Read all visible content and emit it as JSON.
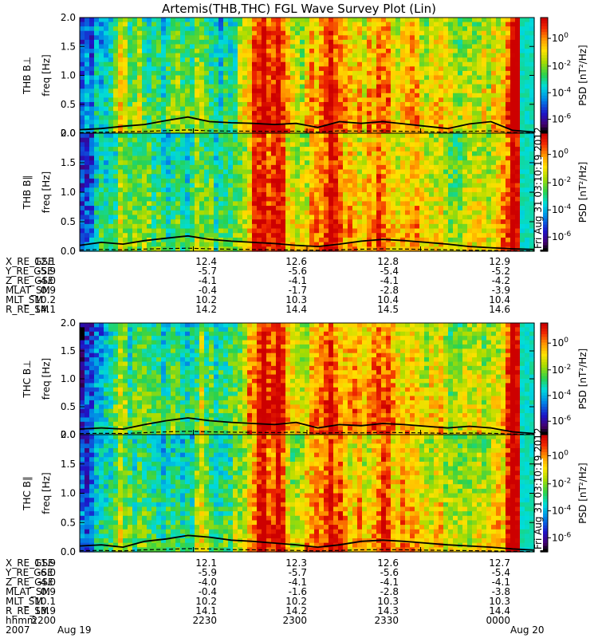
{
  "chart_data": {
    "type": "heatmap",
    "title": "Artemis(THB,THC) FGL Wave Survey Plot (Lin)",
    "colorbar": {
      "label": "PSD [nT²/Hz]",
      "ticks": [
        "10^0",
        "10^-2",
        "10^-4",
        "10^-6"
      ],
      "scale": "log",
      "colormap": "rainbow (black-purple-blue-cyan-green-yellow-orange-red)"
    },
    "y_axis": {
      "label": "freq [Hz]",
      "ylim": [
        0.0,
        2.0
      ],
      "ticks": [
        "0.0",
        "0.5",
        "1.0",
        "1.5",
        "2.0"
      ]
    },
    "panels": [
      {
        "probe": "THB",
        "component": "B⊥",
        "curve": [
          0.06,
          0.08,
          0.12,
          0.15,
          0.22,
          0.28,
          0.2,
          0.18,
          0.17,
          0.15,
          0.17,
          0.1,
          0.2,
          0.17,
          0.2,
          0.16,
          0.12,
          0.08,
          0.16,
          0.2,
          0.05,
          0.02
        ]
      },
      {
        "probe": "THB",
        "component": "B∥",
        "curve": [
          0.1,
          0.15,
          0.12,
          0.18,
          0.22,
          0.26,
          0.2,
          0.17,
          0.15,
          0.13,
          0.1,
          0.08,
          0.12,
          0.17,
          0.2,
          0.18,
          0.15,
          0.12,
          0.08,
          0.06,
          0.04,
          0.03
        ]
      },
      {
        "probe": "THC",
        "component": "B⊥",
        "curve": [
          0.1,
          0.12,
          0.1,
          0.18,
          0.25,
          0.3,
          0.25,
          0.22,
          0.2,
          0.18,
          0.22,
          0.12,
          0.18,
          0.16,
          0.2,
          0.18,
          0.15,
          0.12,
          0.15,
          0.12,
          0.05,
          0.02
        ]
      },
      {
        "probe": "THC",
        "component": "B∥",
        "curve": [
          0.1,
          0.12,
          0.08,
          0.18,
          0.22,
          0.28,
          0.25,
          0.2,
          0.18,
          0.15,
          0.12,
          0.08,
          0.12,
          0.18,
          0.2,
          0.18,
          0.15,
          0.12,
          0.1,
          0.08,
          0.05,
          0.03
        ]
      }
    ],
    "date_stamp": "Fri Aug 31 03:10:19 2012",
    "ephemeris": {
      "thb": {
        "X_RE_GSE": [
          "12.1",
          "12.4",
          "12.6",
          "12.8",
          "12.9"
        ],
        "Y_RE_GSE": [
          "-5.9",
          "-5.7",
          "-5.6",
          "-5.4",
          "-5.2"
        ],
        "Z_RE_GSE": [
          "-4.0",
          "-4.1",
          "-4.1",
          "-4.1",
          "-4.2"
        ],
        "MLAT_SM": [
          "0.9",
          "-0.4",
          "-1.7",
          "-2.8",
          "-3.9"
        ],
        "MLT_SM": [
          "10.2",
          "10.2",
          "10.3",
          "10.4",
          "10.4"
        ],
        "R_RE_SM": [
          "14.1",
          "14.2",
          "14.4",
          "14.5",
          "14.6"
        ]
      },
      "thc": {
        "X_RE_GSE": [
          "11.9",
          "12.1",
          "12.3",
          "12.6",
          "12.7"
        ],
        "Y_RE_GSE": [
          "-6.0",
          "-5.9",
          "-5.7",
          "-5.6",
          "-5.4"
        ],
        "Z_RE_GSE": [
          "-4.0",
          "-4.0",
          "-4.1",
          "-4.1",
          "-4.1"
        ],
        "MLAT_SM": [
          "0.9",
          "-0.4",
          "-1.6",
          "-2.8",
          "-3.8"
        ],
        "MLT_SM": [
          "10.1",
          "10.2",
          "10.2",
          "10.3",
          "10.3"
        ],
        "R_RE_SM": [
          "13.9",
          "14.1",
          "14.2",
          "14.3",
          "14.4"
        ]
      },
      "hhmm": [
        "2200",
        "2230",
        "2300",
        "2330",
        "0000"
      ],
      "year": "2007",
      "dates": [
        "Aug 19",
        "Aug 20"
      ]
    },
    "activity_profile": [
      0.15,
      0.2,
      0.2,
      0.25,
      0.3,
      0.35,
      0.4,
      0.45,
      0.5,
      0.6,
      0.55,
      0.45,
      0.4,
      0.5,
      0.55,
      0.5,
      0.45,
      0.4,
      0.38,
      0.35,
      0.4,
      0.45,
      0.5,
      0.45,
      0.4,
      0.38,
      0.42,
      0.5,
      0.55,
      0.5,
      0.45,
      0.42,
      0.4,
      0.38,
      0.4,
      0.45,
      0.5,
      0.55,
      0.6,
      0.7,
      0.8,
      0.9,
      0.95,
      0.9,
      0.85,
      0.9,
      0.95,
      0.9,
      0.7,
      0.6,
      0.55,
      0.6,
      0.65,
      0.7,
      0.72,
      0.75,
      0.8,
      0.85,
      0.9,
      0.85,
      0.8,
      0.75,
      0.7,
      0.72,
      0.75,
      0.7,
      0.65,
      0.7,
      0.75,
      0.8,
      0.85,
      0.8,
      0.75,
      0.7,
      0.65,
      0.7,
      0.75,
      0.72,
      0.7,
      0.65,
      0.62,
      0.6,
      0.65,
      0.7,
      0.65,
      0.6,
      0.55,
      0.5,
      0.55,
      0.6,
      0.58,
      0.55,
      0.6,
      0.65,
      0.6,
      0.55,
      0.6,
      0.65,
      0.7,
      0.75,
      0.95,
      1.0,
      0.98,
      0.9,
      0.5,
      0.4
    ]
  }
}
